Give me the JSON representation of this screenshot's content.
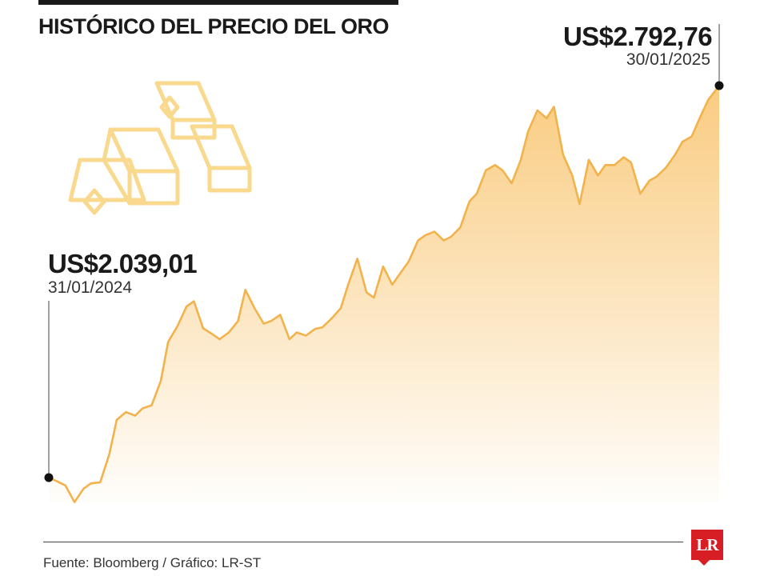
{
  "header": {
    "title": "HISTÓRICO DEL PRECIO DEL ORO"
  },
  "annotations": {
    "start_value": "US$2.039,01",
    "start_date": "31/01/2024",
    "end_value": "US$2.792,76",
    "end_date": "30/01/2025"
  },
  "footer": {
    "source": "Fuente: Bloomberg / Gráfico: LR-ST",
    "logo_text": "LR"
  },
  "colors": {
    "line": "#f2b24c",
    "fill": "#f9c97a",
    "marker": "#111111",
    "logo": "#d81e25"
  },
  "icon": "gold-bars-icon",
  "chart_data": {
    "type": "area",
    "title": "HISTÓRICO DEL PRECIO DEL ORO",
    "xlabel": "",
    "ylabel": "",
    "x_range": [
      "31/01/2024",
      "30/01/2025"
    ],
    "ylim": [
      2000,
      2800
    ],
    "grid": false,
    "legend": "none",
    "series": [
      {
        "x": [
          "31/01/2024",
          "05/02/2024",
          "09/02/2024",
          "14/02/2024",
          "19/02/2024",
          "23/02/2024",
          "28/02/2024",
          "04/03/2024",
          "08/03/2024",
          "13/03/2024",
          "18/03/2024",
          "22/03/2024",
          "27/03/2024",
          "01/04/2024",
          "05/04/2024",
          "10/04/2024",
          "15/04/2024",
          "19/04/2024",
          "24/04/2024",
          "29/04/2024",
          "03/05/2024",
          "08/05/2024",
          "13/05/2024",
          "17/05/2024",
          "22/05/2024",
          "27/05/2024",
          "31/05/2024",
          "05/06/2024",
          "10/06/2024",
          "14/06/2024",
          "19/06/2024",
          "24/06/2024",
          "28/06/2024",
          "03/07/2024",
          "08/07/2024",
          "12/07/2024",
          "17/07/2024",
          "22/07/2024",
          "26/07/2024",
          "31/07/2024",
          "05/08/2024",
          "09/08/2024",
          "14/08/2024",
          "19/08/2024",
          "23/08/2024",
          "28/08/2024",
          "02/09/2024",
          "06/09/2024",
          "11/09/2024",
          "16/09/2024",
          "20/09/2024",
          "25/09/2024",
          "30/09/2024",
          "04/10/2024",
          "09/10/2024",
          "14/10/2024",
          "18/10/2024",
          "23/10/2024",
          "28/10/2024",
          "01/11/2024",
          "06/11/2024",
          "11/11/2024",
          "15/11/2024",
          "20/11/2024",
          "25/11/2024",
          "29/11/2024",
          "04/12/2024",
          "09/12/2024",
          "13/12/2024",
          "18/12/2024",
          "23/12/2024",
          "27/12/2024",
          "01/01/2025",
          "06/01/2025",
          "10/01/2025",
          "15/01/2025",
          "20/01/2025",
          "24/01/2025",
          "30/01/2025"
        ],
        "values": [
          2039.01,
          2031,
          2024,
          1992,
          2018,
          2028,
          2030,
          2085,
          2150,
          2165,
          2158,
          2172,
          2178,
          2225,
          2300,
          2330,
          2368,
          2378,
          2326,
          2315,
          2305,
          2318,
          2340,
          2400,
          2365,
          2335,
          2340,
          2352,
          2305,
          2318,
          2312,
          2325,
          2328,
          2345,
          2365,
          2410,
          2460,
          2395,
          2385,
          2445,
          2410,
          2430,
          2455,
          2495,
          2505,
          2512,
          2495,
          2502,
          2520,
          2570,
          2585,
          2630,
          2640,
          2630,
          2605,
          2650,
          2705,
          2745,
          2730,
          2752,
          2660,
          2620,
          2565,
          2650,
          2620,
          2640,
          2640,
          2655,
          2645,
          2585,
          2610,
          2618,
          2635,
          2660,
          2685,
          2695,
          2735,
          2765,
          2792.76
        ]
      }
    ]
  }
}
